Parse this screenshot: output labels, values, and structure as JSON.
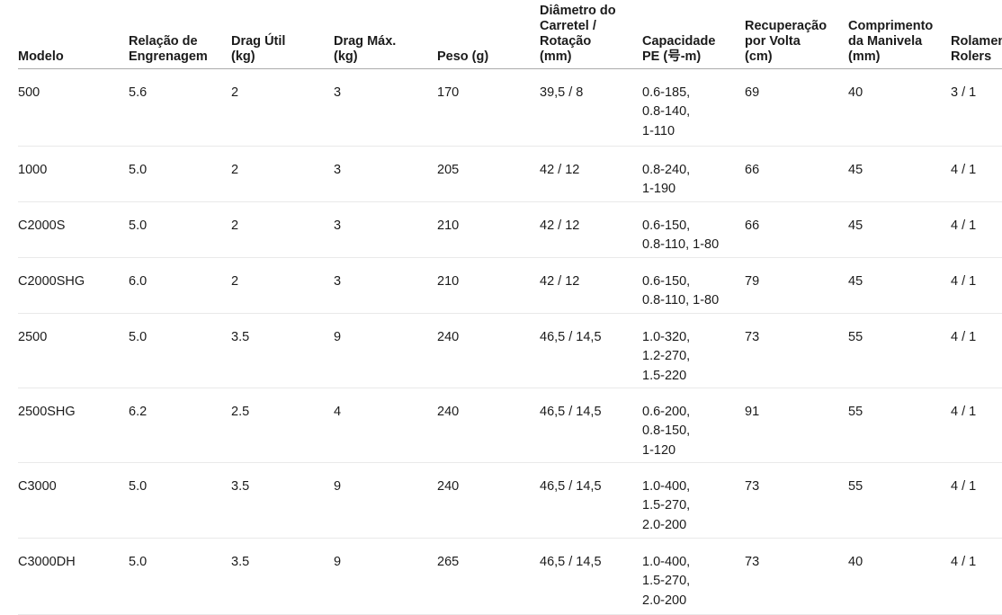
{
  "colors": {
    "background": "#ffffff",
    "text": "#1b1b1b",
    "header_rule": "#ababab",
    "row_rule": "#e9e9e9"
  },
  "table": {
    "columns": [
      {
        "id": "modelo",
        "label": "Modelo",
        "header_lines": [
          "Modelo"
        ]
      },
      {
        "id": "relacao_de_engrenagem",
        "label": "Relação de Engrenagem",
        "header_lines": [
          "Relação de",
          "Engrenagem"
        ]
      },
      {
        "id": "drag_util_kg",
        "label": "Drag Útil (kg)",
        "header_lines": [
          "Drag Útil",
          "(kg)"
        ]
      },
      {
        "id": "drag_max_kg",
        "label": "Drag Máx. (kg)",
        "header_lines": [
          "Drag Máx.",
          "(kg)"
        ]
      },
      {
        "id": "peso_g",
        "label": "Peso (g)",
        "header_lines": [
          "Peso (g)"
        ]
      },
      {
        "id": "diametro_carretel_rotacao_mm",
        "label": "Diâmetro do Carretel / Rotação (mm)",
        "header_lines": [
          "Diâmetro do",
          "Carretel /",
          "Rotação",
          "(mm)"
        ]
      },
      {
        "id": "capacidade_pe",
        "label": "Capacidade PE (号-m)",
        "header_lines": [
          "Capacidade",
          "PE (号-m)"
        ]
      },
      {
        "id": "recuperacao_por_volta_cm",
        "label": "Recuperação por Volta (cm)",
        "header_lines": [
          "Recuperação",
          "por Volta",
          "(cm)"
        ]
      },
      {
        "id": "comprimento_da_manivela_mm",
        "label": "Comprimento da Manivela (mm)",
        "header_lines": [
          "Comprimento",
          "da Manivela",
          "(mm)"
        ]
      },
      {
        "id": "rolamentos_rolers",
        "label": "Rolamentos Rolers",
        "header_lines": [
          "Rolamentos",
          "Rolers"
        ]
      }
    ],
    "rows": [
      {
        "modelo": "500",
        "relacao_de_engrenagem": "5.6",
        "drag_util_kg": "2",
        "drag_max_kg": "3",
        "peso_g": "170",
        "diametro_carretel_rotacao_mm": "39,5 / 8",
        "capacidade_pe": [
          "0.6-185,",
          "0.8-140,",
          "1-110"
        ],
        "recuperacao_por_volta_cm": "69",
        "comprimento_da_manivela_mm": "40",
        "rolamentos_rolers": "3 / 1"
      },
      {
        "modelo": "1000",
        "relacao_de_engrenagem": "5.0",
        "drag_util_kg": "2",
        "drag_max_kg": "3",
        "peso_g": "205",
        "diametro_carretel_rotacao_mm": "42 / 12",
        "capacidade_pe": [
          "0.8-240,",
          "1-190"
        ],
        "recuperacao_por_volta_cm": "66",
        "comprimento_da_manivela_mm": "45",
        "rolamentos_rolers": "4 / 1"
      },
      {
        "modelo": "C2000S",
        "relacao_de_engrenagem": "5.0",
        "drag_util_kg": "2",
        "drag_max_kg": "3",
        "peso_g": "210",
        "diametro_carretel_rotacao_mm": "42 / 12",
        "capacidade_pe": [
          "0.6-150,",
          "0.8-110, 1-80"
        ],
        "recuperacao_por_volta_cm": "66",
        "comprimento_da_manivela_mm": "45",
        "rolamentos_rolers": "4 / 1"
      },
      {
        "modelo": "C2000SHG",
        "relacao_de_engrenagem": "6.0",
        "drag_util_kg": "2",
        "drag_max_kg": "3",
        "peso_g": "210",
        "diametro_carretel_rotacao_mm": "42 / 12",
        "capacidade_pe": [
          "0.6-150,",
          "0.8-110, 1-80"
        ],
        "recuperacao_por_volta_cm": "79",
        "comprimento_da_manivela_mm": "45",
        "rolamentos_rolers": "4 / 1"
      },
      {
        "modelo": "2500",
        "relacao_de_engrenagem": "5.0",
        "drag_util_kg": "3.5",
        "drag_max_kg": "9",
        "peso_g": "240",
        "diametro_carretel_rotacao_mm": "46,5 / 14,5",
        "capacidade_pe": [
          "1.0-320,",
          "1.2-270,",
          "1.5-220"
        ],
        "recuperacao_por_volta_cm": "73",
        "comprimento_da_manivela_mm": "55",
        "rolamentos_rolers": "4 / 1"
      },
      {
        "modelo": "2500SHG",
        "relacao_de_engrenagem": "6.2",
        "drag_util_kg": "2.5",
        "drag_max_kg": "4",
        "peso_g": "240",
        "diametro_carretel_rotacao_mm": "46,5 / 14,5",
        "capacidade_pe": [
          "0.6-200,",
          "0.8-150,",
          "1-120"
        ],
        "recuperacao_por_volta_cm": "91",
        "comprimento_da_manivela_mm": "55",
        "rolamentos_rolers": "4 / 1"
      },
      {
        "modelo": "C3000",
        "relacao_de_engrenagem": "5.0",
        "drag_util_kg": "3.5",
        "drag_max_kg": "9",
        "peso_g": "240",
        "diametro_carretel_rotacao_mm": "46,5 / 14,5",
        "capacidade_pe": [
          "1.0-400,",
          "1.5-270,",
          "2.0-200"
        ],
        "recuperacao_por_volta_cm": "73",
        "comprimento_da_manivela_mm": "55",
        "rolamentos_rolers": "4 / 1"
      },
      {
        "modelo": "C3000DH",
        "relacao_de_engrenagem": "5.0",
        "drag_util_kg": "3.5",
        "drag_max_kg": "9",
        "peso_g": "265",
        "diametro_carretel_rotacao_mm": "46,5 / 14,5",
        "capacidade_pe": [
          "1.0-400,",
          "1.5-270,",
          "2.0-200"
        ],
        "recuperacao_por_volta_cm": "73",
        "comprimento_da_manivela_mm": "40",
        "rolamentos_rolers": "4 / 1"
      }
    ]
  }
}
